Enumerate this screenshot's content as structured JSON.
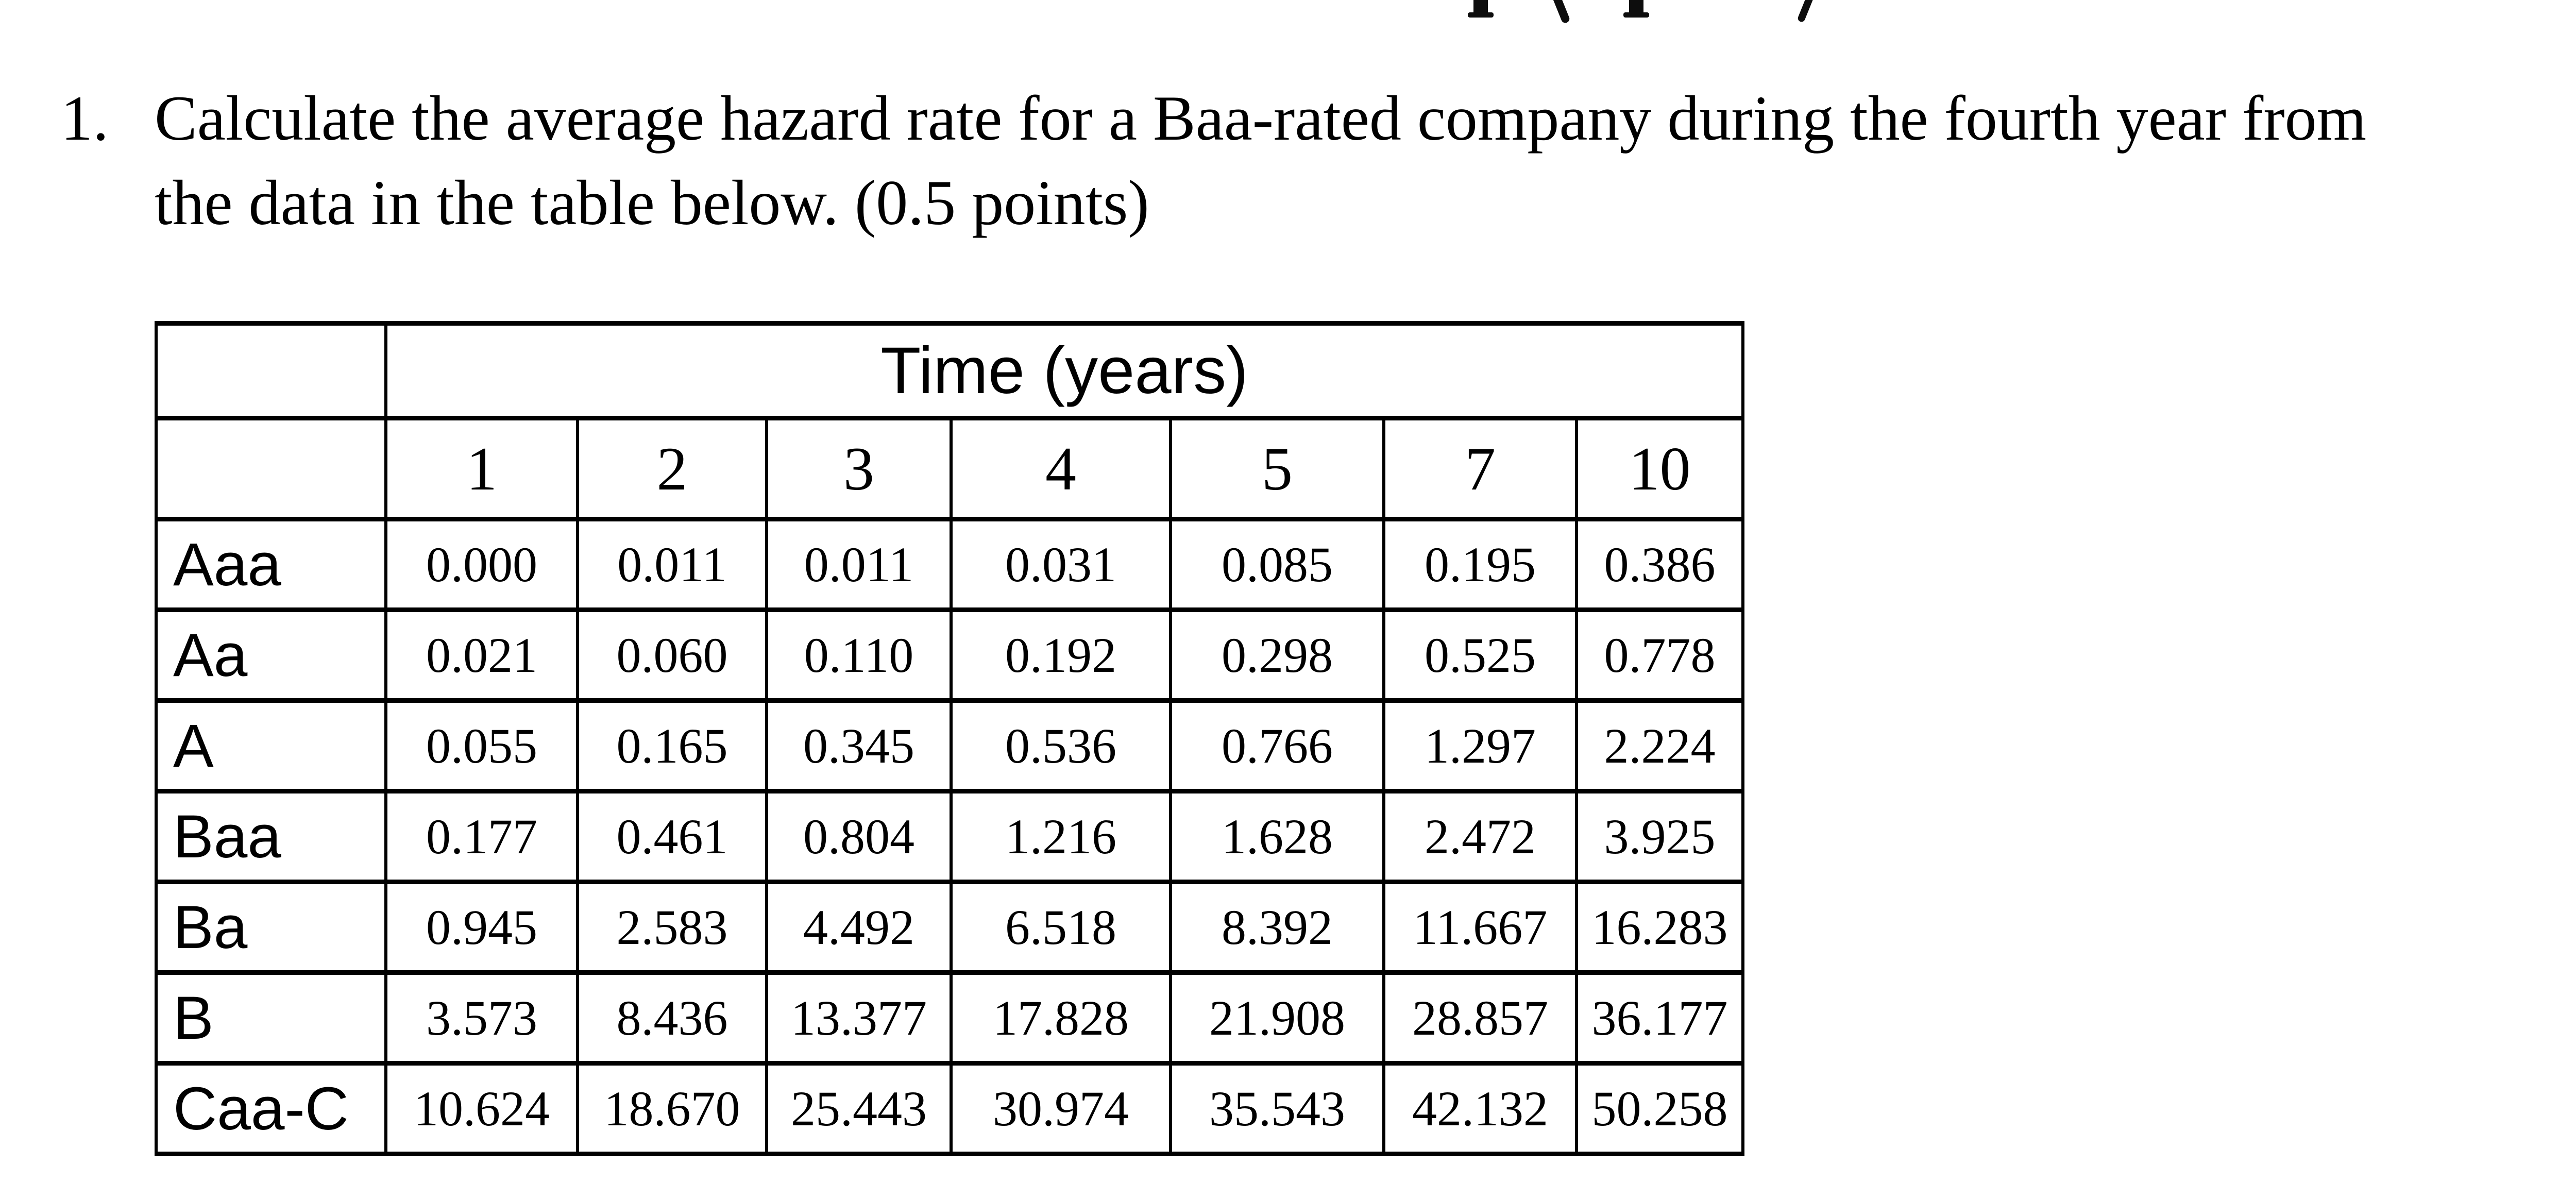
{
  "colors": {
    "background": "#ffffff",
    "text": "#000000",
    "table_border": "#000000"
  },
  "clipped_heading": {
    "fragments": [
      "p-descender-stem",
      "open-paren-tail",
      "p-descender-stem",
      "close-paren-tail"
    ]
  },
  "question": {
    "number": "1.",
    "line1": "Calculate the average hazard rate for a Baa-rated company during the fourth year from",
    "line2": "the data in the table below. (0.5 points)"
  },
  "table": {
    "title": "Time (years)",
    "corner": "",
    "columns": [
      "1",
      "2",
      "3",
      "4",
      "5",
      "7",
      "10"
    ],
    "rows": [
      {
        "label": "Aaa",
        "values": [
          "0.000",
          "0.011",
          "0.011",
          "0.031",
          "0.085",
          "0.195",
          "0.386"
        ]
      },
      {
        "label": "Aa",
        "values": [
          "0.021",
          "0.060",
          "0.110",
          "0.192",
          "0.298",
          "0.525",
          "0.778"
        ]
      },
      {
        "label": "A",
        "values": [
          "0.055",
          "0.165",
          "0.345",
          "0.536",
          "0.766",
          "1.297",
          "2.224"
        ]
      },
      {
        "label": "Baa",
        "values": [
          "0.177",
          "0.461",
          "0.804",
          "1.216",
          "1.628",
          "2.472",
          "3.925"
        ]
      },
      {
        "label": "Ba",
        "values": [
          "0.945",
          "2.583",
          "4.492",
          "6.518",
          "8.392",
          "11.667",
          "16.283"
        ]
      },
      {
        "label": "B",
        "values": [
          "3.573",
          "8.436",
          "13.377",
          "17.828",
          "21.908",
          "28.857",
          "36.177"
        ]
      },
      {
        "label": "Caa-C",
        "values": [
          "10.624",
          "18.670",
          "25.443",
          "30.974",
          "35.543",
          "42.132",
          "50.258"
        ]
      }
    ]
  }
}
